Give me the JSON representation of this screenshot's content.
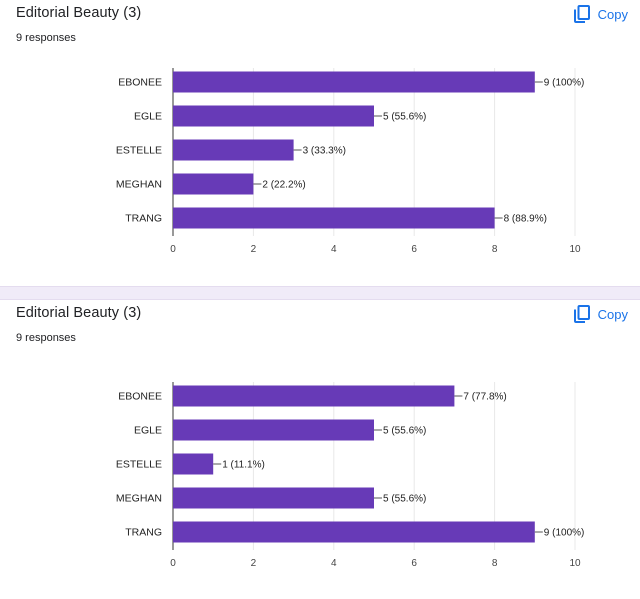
{
  "colors": {
    "bar": "#673ab7",
    "accent": "#1a73e8",
    "separator": "#f0ebf8",
    "grid": "#e8e8e8"
  },
  "cards": [
    {
      "title": "Editorial Beauty (3)",
      "subtitle": "9 responses",
      "copy_label": "Copy",
      "copy_icon": "copy-icon"
    },
    {
      "title": "Editorial Beauty (3)",
      "subtitle": "9 responses",
      "copy_label": "Copy",
      "copy_icon": "copy-icon"
    }
  ],
  "chart_data": [
    {
      "type": "bar",
      "orientation": "horizontal",
      "categories": [
        "EBONEE",
        "EGLE",
        "ESTELLE",
        "MEGHAN",
        "TRANG"
      ],
      "values": [
        9,
        5,
        3,
        2,
        8
      ],
      "data_labels": [
        "9 (100%)",
        "5 (55.6%)",
        "3 (33.3%)",
        "2 (22.2%)",
        "8 (88.9%)"
      ],
      "xlim": [
        0,
        10
      ],
      "xticks": [
        "0",
        "2",
        "4",
        "6",
        "8",
        "10"
      ],
      "grid": true
    },
    {
      "type": "bar",
      "orientation": "horizontal",
      "categories": [
        "EBONEE",
        "EGLE",
        "ESTELLE",
        "MEGHAN",
        "TRANG"
      ],
      "values": [
        7,
        5,
        1,
        5,
        9
      ],
      "data_labels": [
        "7 (77.8%)",
        "5 (55.6%)",
        "1 (11.1%)",
        "5 (55.6%)",
        "9 (100%)"
      ],
      "xlim": [
        0,
        10
      ],
      "xticks": [
        "0",
        "2",
        "4",
        "6",
        "8",
        "10"
      ],
      "grid": true
    }
  ]
}
